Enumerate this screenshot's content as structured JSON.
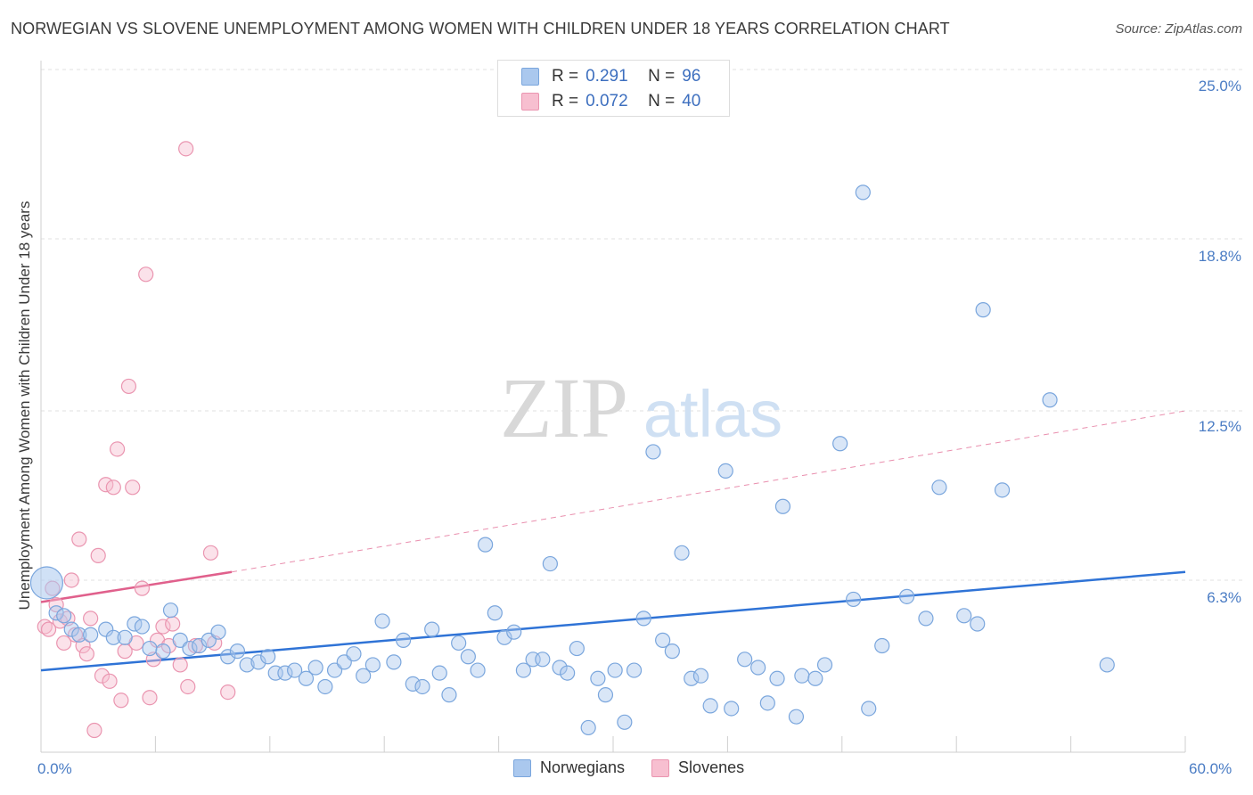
{
  "title": "NORWEGIAN VS SLOVENE UNEMPLOYMENT AMONG WOMEN WITH CHILDREN UNDER 18 YEARS CORRELATION CHART",
  "source": "Source: ZipAtlas.com",
  "watermark": {
    "zip": "ZIP",
    "atlas": "atlas"
  },
  "legend": {
    "rows": [
      {
        "r_label": "R =",
        "r_value": "0.291",
        "n_label": "N =",
        "n_value": "96"
      },
      {
        "r_label": "R =",
        "r_value": "0.072",
        "n_label": "N =",
        "n_value": "40"
      }
    ]
  },
  "colors": {
    "norwegian_fill": "#aac8ee",
    "norwegian_stroke": "#7aa6dd",
    "norwegian_line": "#2f73d6",
    "slovene_fill": "#f7bfd0",
    "slovene_stroke": "#ea95b0",
    "slovene_line": "#e0608c",
    "tick_text": "#4a7cc4",
    "grid": "#e2e2e2"
  },
  "chart_data": {
    "type": "scatter",
    "title": "NORWEGIAN VS SLOVENE UNEMPLOYMENT AMONG WOMEN WITH CHILDREN UNDER 18 YEARS CORRELATION CHART",
    "xlabel": "",
    "ylabel": "Unemployment Among Women with Children Under 18 years",
    "xlim": [
      0,
      60
    ],
    "ylim": [
      0,
      25
    ],
    "x_tick_labels": [
      "0.0%",
      "60.0%"
    ],
    "y_ticks": [
      6.3,
      12.5,
      18.8,
      25.0
    ],
    "y_tick_labels": [
      "6.3%",
      "12.5%",
      "18.8%",
      "25.0%"
    ],
    "series": [
      {
        "name": "Norwegians",
        "R": 0.291,
        "N": 96,
        "trend": {
          "x": [
            0,
            60
          ],
          "y": [
            3.0,
            6.6
          ],
          "style": "solid"
        },
        "points": [
          [
            0.3,
            6.2
          ],
          [
            0.8,
            5.1
          ],
          [
            1.2,
            5.0
          ],
          [
            1.6,
            4.5
          ],
          [
            2.0,
            4.3
          ],
          [
            2.6,
            4.3
          ],
          [
            3.4,
            4.5
          ],
          [
            3.8,
            4.2
          ],
          [
            4.4,
            4.2
          ],
          [
            4.9,
            4.7
          ],
          [
            5.3,
            4.6
          ],
          [
            5.7,
            3.8
          ],
          [
            6.4,
            3.7
          ],
          [
            6.8,
            5.2
          ],
          [
            7.3,
            4.1
          ],
          [
            7.8,
            3.8
          ],
          [
            8.3,
            3.9
          ],
          [
            8.8,
            4.1
          ],
          [
            9.3,
            4.4
          ],
          [
            9.8,
            3.5
          ],
          [
            10.3,
            3.7
          ],
          [
            10.8,
            3.2
          ],
          [
            11.4,
            3.3
          ],
          [
            11.9,
            3.5
          ],
          [
            12.3,
            2.9
          ],
          [
            12.8,
            2.9
          ],
          [
            13.3,
            3.0
          ],
          [
            13.9,
            2.7
          ],
          [
            14.4,
            3.1
          ],
          [
            14.9,
            2.4
          ],
          [
            15.4,
            3.0
          ],
          [
            15.9,
            3.3
          ],
          [
            16.4,
            3.6
          ],
          [
            16.9,
            2.8
          ],
          [
            17.4,
            3.2
          ],
          [
            17.9,
            4.8
          ],
          [
            18.5,
            3.3
          ],
          [
            19.0,
            4.1
          ],
          [
            19.5,
            2.5
          ],
          [
            20.0,
            2.4
          ],
          [
            20.5,
            4.5
          ],
          [
            20.9,
            2.9
          ],
          [
            21.4,
            2.1
          ],
          [
            21.9,
            4.0
          ],
          [
            22.4,
            3.5
          ],
          [
            22.9,
            3.0
          ],
          [
            23.3,
            7.6
          ],
          [
            23.8,
            5.1
          ],
          [
            24.3,
            4.2
          ],
          [
            24.8,
            4.4
          ],
          [
            25.3,
            3.0
          ],
          [
            25.8,
            3.4
          ],
          [
            26.3,
            3.4
          ],
          [
            26.7,
            6.9
          ],
          [
            27.2,
            3.1
          ],
          [
            27.6,
            2.9
          ],
          [
            28.1,
            3.8
          ],
          [
            28.7,
            0.9
          ],
          [
            29.2,
            2.7
          ],
          [
            29.6,
            2.1
          ],
          [
            30.1,
            3.0
          ],
          [
            30.6,
            1.1
          ],
          [
            31.1,
            3.0
          ],
          [
            31.6,
            4.9
          ],
          [
            32.1,
            11.0
          ],
          [
            32.6,
            4.1
          ],
          [
            33.1,
            3.7
          ],
          [
            33.6,
            7.3
          ],
          [
            34.1,
            2.7
          ],
          [
            34.6,
            2.8
          ],
          [
            35.1,
            1.7
          ],
          [
            35.9,
            10.3
          ],
          [
            36.2,
            1.6
          ],
          [
            36.9,
            3.4
          ],
          [
            37.6,
            3.1
          ],
          [
            38.1,
            1.8
          ],
          [
            38.6,
            2.7
          ],
          [
            38.9,
            9.0
          ],
          [
            39.6,
            1.3
          ],
          [
            39.9,
            2.8
          ],
          [
            40.6,
            2.7
          ],
          [
            41.1,
            3.2
          ],
          [
            41.9,
            11.3
          ],
          [
            42.6,
            5.6
          ],
          [
            43.4,
            1.6
          ],
          [
            44.1,
            3.9
          ],
          [
            45.4,
            5.7
          ],
          [
            46.4,
            4.9
          ],
          [
            47.1,
            9.7
          ],
          [
            48.4,
            5.0
          ],
          [
            49.1,
            4.7
          ],
          [
            49.4,
            16.2
          ],
          [
            50.4,
            9.6
          ],
          [
            52.9,
            12.9
          ],
          [
            43.1,
            20.5
          ],
          [
            55.9,
            3.2
          ]
        ]
      },
      {
        "name": "Slovenes",
        "R": 0.072,
        "N": 40,
        "trend": {
          "x": [
            0,
            10
          ],
          "y": [
            5.5,
            6.6
          ],
          "style": "solid",
          "extended": {
            "x": [
              10,
              60
            ],
            "y": [
              6.6,
              12.5
            ],
            "style": "dashed"
          }
        },
        "points": [
          [
            0.2,
            4.6
          ],
          [
            0.4,
            4.5
          ],
          [
            0.6,
            6.0
          ],
          [
            0.8,
            5.4
          ],
          [
            1.0,
            4.8
          ],
          [
            1.2,
            4.0
          ],
          [
            1.4,
            4.9
          ],
          [
            1.6,
            6.3
          ],
          [
            1.8,
            4.3
          ],
          [
            2.0,
            7.8
          ],
          [
            2.2,
            3.9
          ],
          [
            2.4,
            3.6
          ],
          [
            2.6,
            4.9
          ],
          [
            2.8,
            0.8
          ],
          [
            3.0,
            7.2
          ],
          [
            3.2,
            2.8
          ],
          [
            3.4,
            9.8
          ],
          [
            3.6,
            2.6
          ],
          [
            3.8,
            9.7
          ],
          [
            4.0,
            11.1
          ],
          [
            4.2,
            1.9
          ],
          [
            4.4,
            3.7
          ],
          [
            4.6,
            13.4
          ],
          [
            4.8,
            9.7
          ],
          [
            5.0,
            4.0
          ],
          [
            5.3,
            6.0
          ],
          [
            5.5,
            17.5
          ],
          [
            5.7,
            2.0
          ],
          [
            5.9,
            3.4
          ],
          [
            6.1,
            4.1
          ],
          [
            6.4,
            4.6
          ],
          [
            6.7,
            3.9
          ],
          [
            6.9,
            4.7
          ],
          [
            7.3,
            3.2
          ],
          [
            7.6,
            22.1
          ],
          [
            7.7,
            2.4
          ],
          [
            8.1,
            3.9
          ],
          [
            9.1,
            4.0
          ],
          [
            8.9,
            7.3
          ],
          [
            9.8,
            2.2
          ]
        ]
      }
    ]
  },
  "bottom_legend": [
    "Norwegians",
    "Slovenes"
  ]
}
